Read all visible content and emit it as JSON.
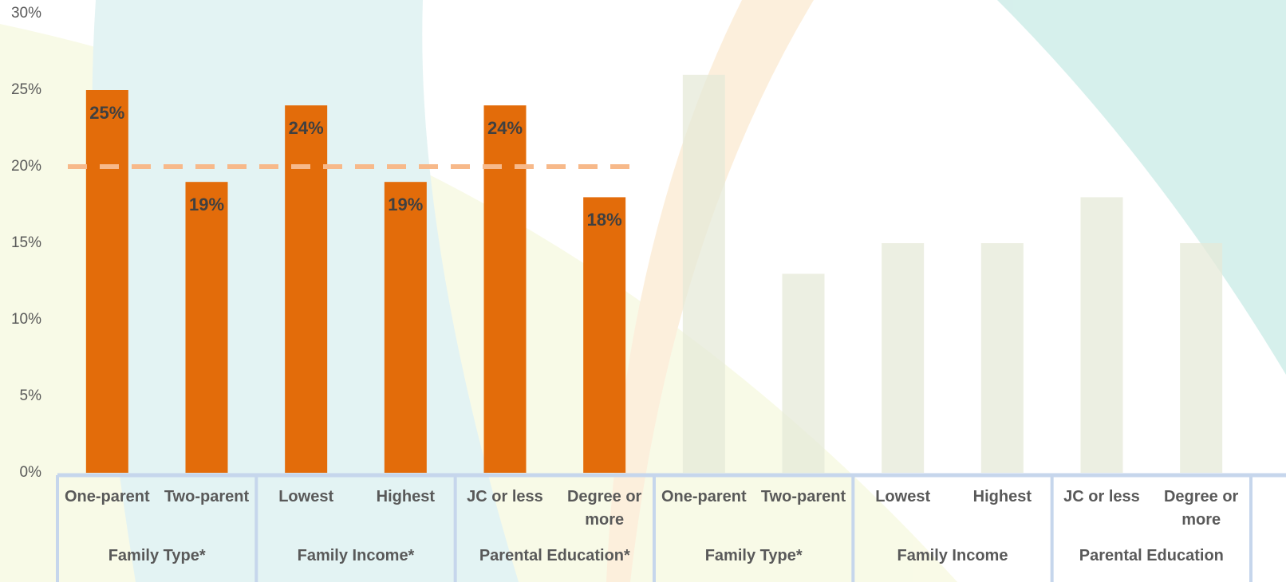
{
  "chart_data": {
    "type": "bar",
    "categories": [
      "One-parent",
      "Two-parent",
      "Lowest",
      "Highest",
      "JC or less",
      "Degree or more",
      "One-parent",
      "Two-parent",
      "Lowest",
      "Highest",
      "JC or less",
      "Degree or more"
    ],
    "groups": [
      "Family Type*",
      "Family Income*",
      "Parental Education*",
      "Family Type*",
      "Family Income",
      "Parental Education"
    ],
    "values": [
      25,
      19,
      24,
      19,
      24,
      18,
      26,
      13,
      15,
      15,
      18,
      15
    ],
    "value_labels": [
      "25%",
      "19%",
      "24%",
      "19%",
      "24%",
      "18%",
      null,
      null,
      null,
      null,
      null,
      null
    ],
    "colors": [
      "#e36c0a",
      "#e36c0a",
      "#e36c0a",
      "#e36c0a",
      "#e36c0a",
      "#e36c0a",
      "#e6e9d8",
      "#e6e9d8",
      "#e6e9d8",
      "#e6e9d8",
      "#e6e9d8",
      "#e6e9d8"
    ],
    "reference_line": {
      "value": 20,
      "color": "#f7b98a"
    },
    "ylim": [
      0,
      30
    ],
    "yticks": [
      {
        "value": 0,
        "label": "0%"
      },
      {
        "value": 5,
        "label": "5%"
      },
      {
        "value": 10,
        "label": "10%"
      },
      {
        "value": 15,
        "label": "15%"
      },
      {
        "value": 20,
        "label": "20%"
      },
      {
        "value": 25,
        "label": "25%"
      },
      {
        "value": 30,
        "label": "30%"
      }
    ],
    "grid": false
  }
}
